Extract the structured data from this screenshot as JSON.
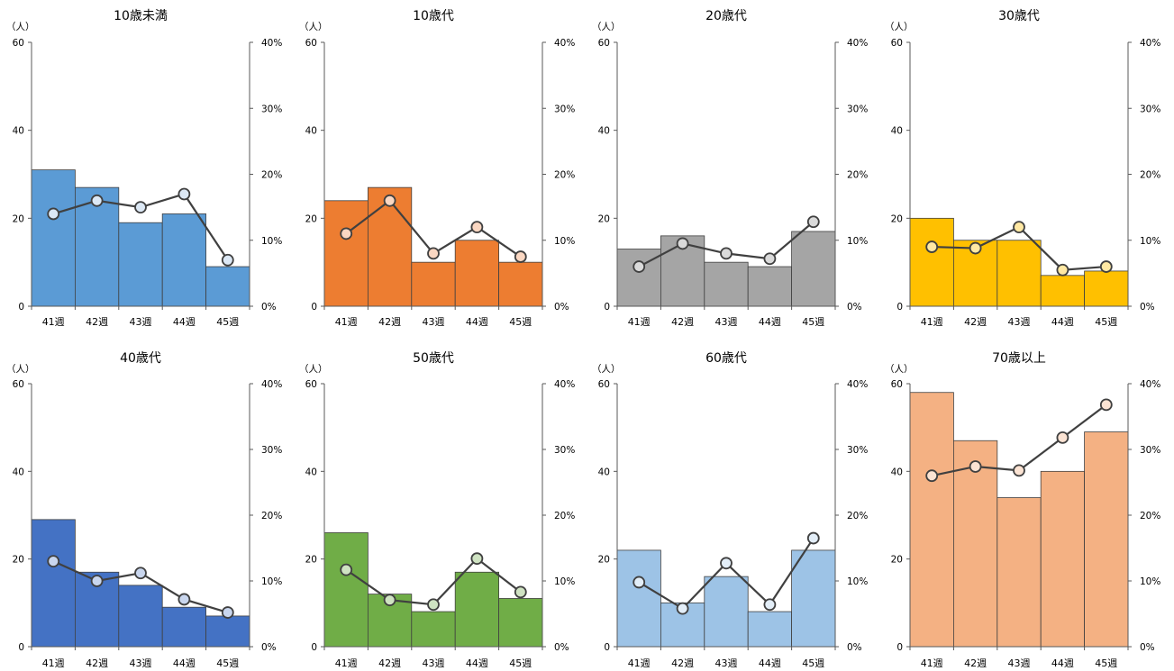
{
  "y_unit": "（人）",
  "chart_data": [
    {
      "type": "bar",
      "title": "10歳未満",
      "categories": [
        "41週",
        "42週",
        "43週",
        "44週",
        "45週"
      ],
      "values": [
        31,
        27,
        19,
        21,
        9
      ],
      "line_values": [
        0.14,
        0.16,
        0.15,
        0.17,
        0.07
      ],
      "ylim": [
        0,
        60
      ],
      "y2lim": [
        0,
        0.4
      ],
      "bar_color": "#5B9BD5",
      "marker_fill": "#DCE8F5"
    },
    {
      "type": "bar",
      "title": "10歳代",
      "categories": [
        "41週",
        "42週",
        "43週",
        "44週",
        "45週"
      ],
      "values": [
        24,
        27,
        10,
        15,
        10
      ],
      "line_values": [
        0.11,
        0.16,
        0.08,
        0.12,
        0.075
      ],
      "ylim": [
        0,
        60
      ],
      "y2lim": [
        0,
        0.4
      ],
      "bar_color": "#ED7D31",
      "marker_fill": "#FAD7C2"
    },
    {
      "type": "bar",
      "title": "20歳代",
      "categories": [
        "41週",
        "42週",
        "43週",
        "44週",
        "45週"
      ],
      "values": [
        13,
        16,
        10,
        9,
        17
      ],
      "line_values": [
        0.06,
        0.095,
        0.08,
        0.072,
        0.128
      ],
      "ylim": [
        0,
        60
      ],
      "y2lim": [
        0,
        0.4
      ],
      "bar_color": "#A5A5A5",
      "marker_fill": "#DADADA"
    },
    {
      "type": "bar",
      "title": "30歳代",
      "categories": [
        "41週",
        "42週",
        "43週",
        "44週",
        "45週"
      ],
      "values": [
        20,
        15,
        15,
        7,
        8
      ],
      "line_values": [
        0.09,
        0.088,
        0.12,
        0.055,
        0.06
      ],
      "ylim": [
        0,
        60
      ],
      "y2lim": [
        0,
        0.4
      ],
      "bar_color": "#FFC000",
      "marker_fill": "#FFE8A3"
    },
    {
      "type": "bar",
      "title": "40歳代",
      "categories": [
        "41週",
        "42週",
        "43週",
        "44週",
        "45週"
      ],
      "values": [
        29,
        17,
        14,
        9,
        7
      ],
      "line_values": [
        0.13,
        0.1,
        0.112,
        0.072,
        0.052
      ],
      "ylim": [
        0,
        60
      ],
      "y2lim": [
        0,
        0.4
      ],
      "bar_color": "#4472C4",
      "marker_fill": "#C9D6EE"
    },
    {
      "type": "bar",
      "title": "50歳代",
      "categories": [
        "41週",
        "42週",
        "43週",
        "44週",
        "45週"
      ],
      "values": [
        26,
        12,
        8,
        17,
        11
      ],
      "line_values": [
        0.117,
        0.071,
        0.064,
        0.134,
        0.083
      ],
      "ylim": [
        0,
        60
      ],
      "y2lim": [
        0,
        0.4
      ],
      "bar_color": "#70AD47",
      "marker_fill": "#CFE3C2"
    },
    {
      "type": "bar",
      "title": "60歳代",
      "categories": [
        "41週",
        "42週",
        "43週",
        "44週",
        "45週"
      ],
      "values": [
        22,
        10,
        16,
        8,
        22
      ],
      "line_values": [
        0.098,
        0.058,
        0.127,
        0.064,
        0.165
      ],
      "ylim": [
        0,
        60
      ],
      "y2lim": [
        0,
        0.4
      ],
      "bar_color": "#9DC3E6",
      "marker_fill": "#E3EEF8"
    },
    {
      "type": "bar",
      "title": "70歳以上",
      "categories": [
        "41週",
        "42週",
        "43週",
        "44週",
        "45週"
      ],
      "values": [
        58,
        47,
        34,
        40,
        49
      ],
      "line_values": [
        0.26,
        0.274,
        0.268,
        0.318,
        0.368
      ],
      "ylim": [
        0,
        60
      ],
      "y2lim": [
        0,
        0.4
      ],
      "bar_color": "#F4B183",
      "marker_fill": "#FBE3D3"
    }
  ],
  "y_ticks": [
    "0",
    "20",
    "40",
    "60"
  ],
  "y2_ticks": [
    "0%",
    "10%",
    "20%",
    "30%",
    "40%"
  ]
}
